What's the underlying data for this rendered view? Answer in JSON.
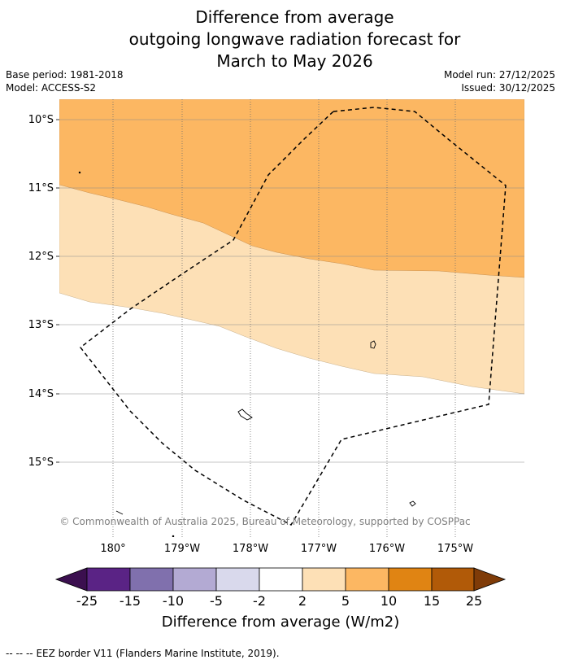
{
  "title": {
    "line1": "Difference from average",
    "line2": "outgoing longwave radiation forecast for",
    "line3": "March to May 2026"
  },
  "meta": {
    "base_period": "Base period: 1981-2018",
    "model": "Model: ACCESS-S2",
    "model_run": "Model run: 27/12/2025",
    "issued": "Issued: 30/12/2025"
  },
  "map": {
    "lat_labels": [
      "10°S",
      "11°S",
      "12°S",
      "13°S",
      "14°S",
      "15°S"
    ],
    "lon_labels": [
      "180°",
      "179°W",
      "178°W",
      "177°W",
      "176°W",
      "175°W"
    ],
    "copyright": "© Commonwealth of Australia 2025, Bureau of Meteorology, supported by COSPPac",
    "zones": [
      {
        "name": "5 to 10",
        "color": "#fcb762"
      },
      {
        "name": "2 to 5",
        "color": "#fde0b6"
      },
      {
        "name": "-2 to 2",
        "color": "#ffffff"
      }
    ]
  },
  "colorbar": {
    "title": "Difference from average (W/m2)",
    "ticks": [
      "-25",
      "-15",
      "-10",
      "-5",
      "-2",
      "2",
      "5",
      "10",
      "15",
      "25"
    ],
    "colors": [
      "#3b0f4f",
      "#5a2385",
      "#8070ad",
      "#b3aad3",
      "#d9d9ec",
      "#ffffff",
      "#fde0b6",
      "#fcb762",
      "#e08413",
      "#b15a08",
      "#7f3b08"
    ]
  },
  "footer": {
    "legend_symbol": "--  --  --",
    "legend_text": "EEZ border V11 (Flanders Marine Institute, 2019)."
  }
}
